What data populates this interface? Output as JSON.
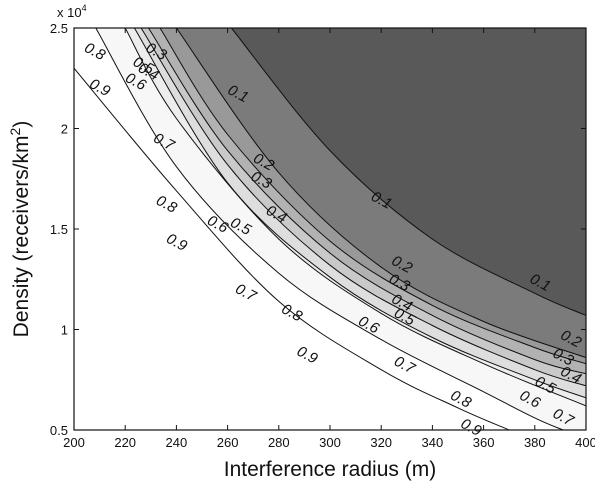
{
  "chart_data": {
    "type": "contour",
    "title": "",
    "xlabel": "Interference radius (m)",
    "ylabel_main": "Density (receivers/km",
    "ylabel_sup": "2",
    "ylabel_close": ")",
    "y_multiplier": "x 10",
    "y_multiplier_exp": "4",
    "xlim": [
      200,
      400
    ],
    "ylim": [
      0.5,
      2.5
    ],
    "x_ticks": [
      "200",
      "220",
      "240",
      "260",
      "280",
      "300",
      "320",
      "340",
      "360",
      "380",
      "400"
    ],
    "y_ticks": [
      "0.5",
      "1",
      "1.5",
      "2",
      "2.5"
    ],
    "grid": false,
    "contour_levels": [
      0.1,
      0.2,
      0.3,
      0.4,
      0.5,
      0.6,
      0.7,
      0.8,
      0.9
    ],
    "fill_colors": [
      "#595959",
      "#7b7b7b",
      "#999999",
      "#b2b2b2",
      "#c9c9c9",
      "#dedede",
      "#ededed",
      "#f7f7f7",
      "#ffffff",
      "#ffffff"
    ],
    "contour_lines": [
      {
        "level": 0.1,
        "points": [
          [
            261.5,
            2.5
          ],
          [
            300,
            1.89
          ],
          [
            340,
            1.45
          ],
          [
            380,
            1.18
          ],
          [
            400,
            1.07
          ]
        ]
      },
      {
        "level": 0.2,
        "points": [
          [
            240,
            2.5
          ],
          [
            280,
            1.78
          ],
          [
            320,
            1.31
          ],
          [
            360,
            1.04
          ],
          [
            400,
            0.86
          ]
        ]
      },
      {
        "level": 0.3,
        "points": [
          [
            233.6,
            2.5
          ],
          [
            260,
            1.97
          ],
          [
            300,
            1.44
          ],
          [
            340,
            1.12
          ],
          [
            380,
            0.91
          ],
          [
            400,
            0.83
          ]
        ]
      },
      {
        "level": 0.4,
        "points": [
          [
            229.1,
            2.5
          ],
          [
            260,
            1.89
          ],
          [
            300,
            1.38
          ],
          [
            340,
            1.07
          ],
          [
            380,
            0.85
          ],
          [
            400,
            0.78
          ]
        ]
      },
      {
        "level": 0.5,
        "points": [
          [
            226.2,
            2.5
          ],
          [
            260,
            1.82
          ],
          [
            300,
            1.32
          ],
          [
            340,
            1.02
          ],
          [
            380,
            0.8
          ],
          [
            400,
            0.72
          ]
        ]
      },
      {
        "level": 0.6,
        "points": [
          [
            223.6,
            2.5
          ],
          [
            260,
            1.73
          ],
          [
            300,
            1.26
          ],
          [
            340,
            0.96
          ],
          [
            380,
            0.75
          ],
          [
            400,
            0.66
          ]
        ]
      },
      {
        "level": 0.7,
        "points": [
          [
            220,
            2.5
          ],
          [
            240,
            2.05
          ],
          [
            280,
            1.45
          ],
          [
            320,
            1.08
          ],
          [
            360,
            0.83
          ],
          [
            400,
            0.62
          ]
        ]
      },
      {
        "level": 0.8,
        "points": [
          [
            208.5,
            2.5
          ],
          [
            240,
            1.81
          ],
          [
            280,
            1.28
          ],
          [
            320,
            0.95
          ],
          [
            360,
            0.69
          ],
          [
            380,
            0.56
          ],
          [
            391,
            0.5
          ]
        ]
      },
      {
        "level": 0.9,
        "points": [
          [
            200,
            2.3
          ],
          [
            240,
            1.69
          ],
          [
            280,
            1.14
          ],
          [
            320,
            0.8
          ],
          [
            350,
            0.61
          ],
          [
            370,
            0.5
          ]
        ]
      }
    ],
    "contour_labels": [
      {
        "text": "0.1",
        "x": 264,
        "y": 2.17
      },
      {
        "text": "0.1",
        "x": 320,
        "y": 1.64
      },
      {
        "text": "0.1",
        "x": 382,
        "y": 1.23
      },
      {
        "text": "0.2",
        "x": 274,
        "y": 1.83
      },
      {
        "text": "0.2",
        "x": 328,
        "y": 1.32
      },
      {
        "text": "0.2",
        "x": 394,
        "y": 0.95
      },
      {
        "text": "0.3",
        "x": 232,
        "y": 2.38
      },
      {
        "text": "0.3",
        "x": 273,
        "y": 1.74
      },
      {
        "text": "0.3",
        "x": 327,
        "y": 1.23
      },
      {
        "text": "0.3",
        "x": 391,
        "y": 0.86
      },
      {
        "text": "0.4",
        "x": 229,
        "y": 2.28
      },
      {
        "text": "0.4",
        "x": 279,
        "y": 1.57
      },
      {
        "text": "0.4",
        "x": 328,
        "y": 1.13
      },
      {
        "text": "0.4",
        "x": 394,
        "y": 0.77
      },
      {
        "text": "0.5",
        "x": 227,
        "y": 2.31
      },
      {
        "text": "0.5",
        "x": 265,
        "y": 1.51
      },
      {
        "text": "0.5",
        "x": 329,
        "y": 1.06
      },
      {
        "text": "0.5",
        "x": 384,
        "y": 0.72
      },
      {
        "text": "0.6",
        "x": 224,
        "y": 2.23
      },
      {
        "text": "0.6",
        "x": 256,
        "y": 1.52
      },
      {
        "text": "0.6",
        "x": 315,
        "y": 1.02
      },
      {
        "text": "0.6",
        "x": 378,
        "y": 0.65
      },
      {
        "text": "0.7",
        "x": 235,
        "y": 1.93
      },
      {
        "text": "0.7",
        "x": 267,
        "y": 1.18
      },
      {
        "text": "0.7",
        "x": 329,
        "y": 0.82
      },
      {
        "text": "0.7",
        "x": 391,
        "y": 0.56
      },
      {
        "text": "0.8",
        "x": 208,
        "y": 2.38
      },
      {
        "text": "0.8",
        "x": 236,
        "y": 1.62
      },
      {
        "text": "0.8",
        "x": 285,
        "y": 1.08
      },
      {
        "text": "0.8",
        "x": 351,
        "y": 0.65
      },
      {
        "text": "0.9",
        "x": 210,
        "y": 2.2
      },
      {
        "text": "0.9",
        "x": 240,
        "y": 1.43
      },
      {
        "text": "0.9",
        "x": 291,
        "y": 0.87
      },
      {
        "text": "0.9",
        "x": 355,
        "y": 0.51
      }
    ]
  }
}
